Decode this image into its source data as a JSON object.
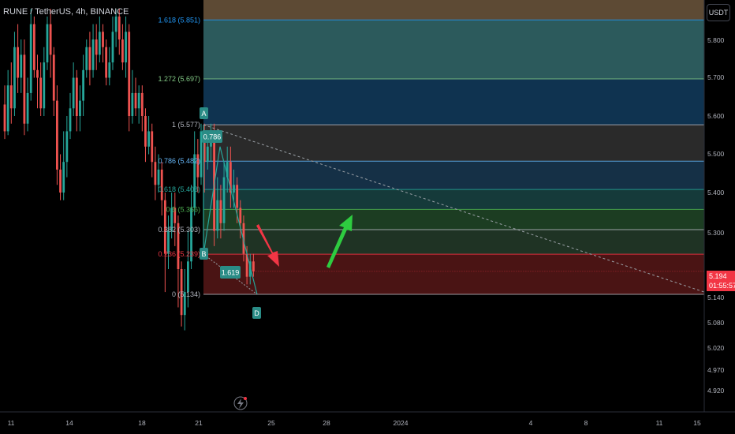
{
  "header": {
    "symbol": "RUNE / TetherUS, 4h, BINANCE",
    "currency_button": "USDT"
  },
  "price": {
    "current": "5.194",
    "countdown": "01:55:57",
    "color": "#f23645"
  },
  "colors": {
    "up": "#26a69a",
    "down": "#ef5350",
    "background": "#000000",
    "axis_text": "#b2b5be"
  },
  "chart_data": {
    "type": "candlestick",
    "y_axis": {
      "ticks": [
        "5.800",
        "5.700",
        "5.600",
        "5.500",
        "5.400",
        "5.300",
        "5.140",
        "5.080",
        "5.020",
        "4.970",
        "4.920"
      ],
      "position": "right"
    },
    "x_axis": {
      "ticks": [
        "11",
        "14",
        "18",
        "21",
        "25",
        "28",
        "2024",
        "4",
        "8",
        "11",
        "15"
      ]
    },
    "fib_levels": [
      {
        "ratio": "1.618",
        "price": "5.851",
        "label": "1.618 (5.851)",
        "color": "#2196f3"
      },
      {
        "ratio": "1.272",
        "price": "5.697",
        "label": "1.272 (5.697)",
        "color": "#81c784"
      },
      {
        "ratio": "1",
        "price": "5.577",
        "label": "1 (5.577)",
        "color": "#b2b5be"
      },
      {
        "ratio": "0.786",
        "price": "5.482",
        "label": "0.786 (5.482)",
        "color": "#64b5f6"
      },
      {
        "ratio": "0.618",
        "price": "5.408",
        "label": "0.618 (5.408)",
        "color": "#26a69a"
      },
      {
        "ratio": "0.5",
        "price": "5.356",
        "label": "0.5 (5.356)",
        "color": "#4caf50"
      },
      {
        "ratio": "0.382",
        "price": "5.303",
        "label": "0.382 (5.303)",
        "color": "#b2b5be"
      },
      {
        "ratio": "0.236",
        "price": "5.239",
        "label": "0.236 (5.239)",
        "color": "#f23645"
      },
      {
        "ratio": "0",
        "price": "5.134",
        "label": "0 (5.134)",
        "color": "#b2b5be"
      }
    ],
    "pattern_points": [
      {
        "label": "A"
      },
      {
        "label": "B"
      },
      {
        "label": "D"
      }
    ],
    "pattern_ratios": [
      "0.786",
      "1.619"
    ],
    "candles": [
      [
        5.63,
        5.56,
        5.68,
        5.54
      ],
      [
        5.56,
        5.68,
        5.72,
        5.55
      ],
      [
        5.68,
        5.62,
        5.74,
        5.58
      ],
      [
        5.62,
        5.78,
        5.82,
        5.6
      ],
      [
        5.78,
        5.7,
        5.84,
        5.66
      ],
      [
        5.7,
        5.76,
        5.8,
        5.66
      ],
      [
        5.76,
        5.58,
        5.8,
        5.55
      ],
      [
        5.58,
        5.66,
        5.7,
        5.56
      ],
      [
        5.66,
        5.84,
        5.88,
        5.64
      ],
      [
        5.84,
        5.72,
        5.86,
        5.7
      ],
      [
        5.72,
        5.7,
        5.76,
        5.62
      ],
      [
        5.7,
        5.62,
        5.74,
        5.6
      ],
      [
        5.62,
        5.74,
        5.78,
        5.6
      ],
      [
        5.74,
        5.84,
        5.86,
        5.72
      ],
      [
        5.84,
        5.76,
        5.88,
        5.7
      ],
      [
        5.76,
        5.64,
        5.78,
        5.6
      ],
      [
        5.64,
        5.46,
        5.68,
        5.42
      ],
      [
        5.46,
        5.4,
        5.5,
        5.38
      ],
      [
        5.4,
        5.48,
        5.56,
        5.38
      ],
      [
        5.48,
        5.56,
        5.6,
        5.44
      ],
      [
        5.56,
        5.62,
        5.66,
        5.54
      ],
      [
        5.62,
        5.7,
        5.74,
        5.6
      ],
      [
        5.7,
        5.6,
        5.72,
        5.56
      ],
      [
        5.6,
        5.64,
        5.68,
        5.56
      ],
      [
        5.64,
        5.72,
        5.76,
        5.6
      ],
      [
        5.72,
        5.78,
        5.8,
        5.7
      ],
      [
        5.78,
        5.72,
        5.82,
        5.68
      ],
      [
        5.72,
        5.8,
        5.84,
        5.7
      ],
      [
        5.8,
        5.76,
        5.84,
        5.72
      ],
      [
        5.76,
        5.82,
        5.86,
        5.74
      ],
      [
        5.82,
        5.78,
        5.84,
        5.74
      ],
      [
        5.78,
        5.7,
        5.8,
        5.68
      ],
      [
        5.7,
        5.74,
        5.78,
        5.68
      ],
      [
        5.74,
        5.82,
        5.86,
        5.72
      ],
      [
        5.82,
        5.86,
        5.88,
        5.78
      ],
      [
        5.86,
        5.8,
        5.88,
        5.76
      ],
      [
        5.8,
        5.74,
        5.84,
        5.72
      ],
      [
        5.74,
        5.82,
        5.86,
        5.7
      ],
      [
        5.82,
        5.6,
        5.84,
        5.56
      ],
      [
        5.6,
        5.66,
        5.72,
        5.58
      ],
      [
        5.66,
        5.62,
        5.7,
        5.6
      ],
      [
        5.62,
        5.66,
        5.68,
        5.58
      ],
      [
        5.66,
        5.6,
        5.68,
        5.56
      ],
      [
        5.6,
        5.52,
        5.62,
        5.48
      ],
      [
        5.52,
        5.56,
        5.6,
        5.5
      ],
      [
        5.56,
        5.48,
        5.58,
        5.44
      ],
      [
        5.48,
        5.42,
        5.52,
        5.38
      ],
      [
        5.42,
        5.46,
        5.5,
        5.4
      ],
      [
        5.46,
        5.38,
        5.48,
        5.34
      ],
      [
        5.38,
        5.24,
        5.4,
        5.14
      ],
      [
        5.24,
        5.3,
        5.34,
        5.2
      ],
      [
        5.3,
        5.36,
        5.4,
        5.28
      ],
      [
        5.36,
        5.32,
        5.4,
        5.26
      ],
      [
        5.32,
        5.2,
        5.34,
        5.1
      ],
      [
        5.2,
        5.08,
        5.22,
        5.05
      ],
      [
        5.08,
        5.14,
        5.2,
        5.04
      ],
      [
        5.14,
        5.22,
        5.3,
        5.1
      ],
      [
        5.22,
        5.36,
        5.42,
        5.2
      ],
      [
        5.36,
        5.5,
        5.56,
        5.34
      ],
      [
        5.5,
        5.44,
        5.54,
        5.4
      ],
      [
        5.44,
        5.56,
        5.58,
        5.42
      ],
      [
        5.56,
        5.48,
        5.58,
        5.4
      ],
      [
        5.48,
        5.52,
        5.56,
        5.46
      ],
      [
        5.52,
        5.56,
        5.58,
        5.48
      ],
      [
        5.56,
        5.3,
        5.58,
        5.26
      ],
      [
        5.3,
        5.38,
        5.44,
        5.28
      ],
      [
        5.38,
        5.32,
        5.42,
        5.28
      ],
      [
        5.32,
        5.44,
        5.48,
        5.3
      ],
      [
        5.44,
        5.48,
        5.52,
        5.4
      ],
      [
        5.48,
        5.4,
        5.52,
        5.36
      ],
      [
        5.4,
        5.42,
        5.46,
        5.36
      ],
      [
        5.42,
        5.36,
        5.44,
        5.32
      ],
      [
        5.36,
        5.32,
        5.38,
        5.28
      ],
      [
        5.32,
        5.24,
        5.34,
        5.22
      ],
      [
        5.24,
        5.18,
        5.26,
        5.16
      ],
      [
        5.18,
        5.22,
        5.24,
        5.16
      ],
      [
        5.22,
        5.194,
        5.24,
        5.18
      ]
    ]
  }
}
